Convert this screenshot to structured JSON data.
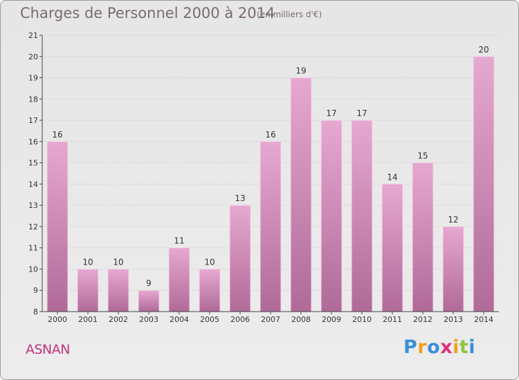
{
  "header": {
    "title": "Charges de Personnel 2000 à 2014",
    "unit": "(en milliers d'€)"
  },
  "commune": "ASNAN",
  "logo": {
    "letters": [
      {
        "char": "P",
        "color": "#3a8fd8"
      },
      {
        "char": "r",
        "color": "#f0a020"
      },
      {
        "char": "o",
        "color": "#3a8fd8"
      },
      {
        "char": "x",
        "color": "#e0307a"
      },
      {
        "char": "i",
        "color": "#f0a020"
      },
      {
        "char": "t",
        "color": "#8cc63f"
      },
      {
        "char": "i",
        "color": "#3a8fd8"
      }
    ]
  },
  "colors": {
    "bar_light": "#e6a8d0",
    "bar_dark": "#b06a98",
    "axis": "#444444",
    "grid": "#d0d0d0"
  },
  "chart_data": {
    "type": "bar",
    "title": "Charges de Personnel 2000 à 2014",
    "subtitle": "(en milliers d'€)",
    "categories": [
      "2000",
      "2001",
      "2002",
      "2003",
      "2004",
      "2005",
      "2006",
      "2007",
      "2008",
      "2009",
      "2010",
      "2011",
      "2012",
      "2013",
      "2014"
    ],
    "values": [
      16,
      10,
      10,
      9,
      11,
      10,
      13,
      16,
      19,
      17,
      17,
      14,
      15,
      12,
      20
    ],
    "ylim": [
      8,
      21
    ],
    "yticks": [
      8,
      9,
      10,
      11,
      12,
      13,
      14,
      15,
      16,
      17,
      18,
      19,
      20,
      21
    ],
    "grid": true,
    "data_labels": true
  }
}
